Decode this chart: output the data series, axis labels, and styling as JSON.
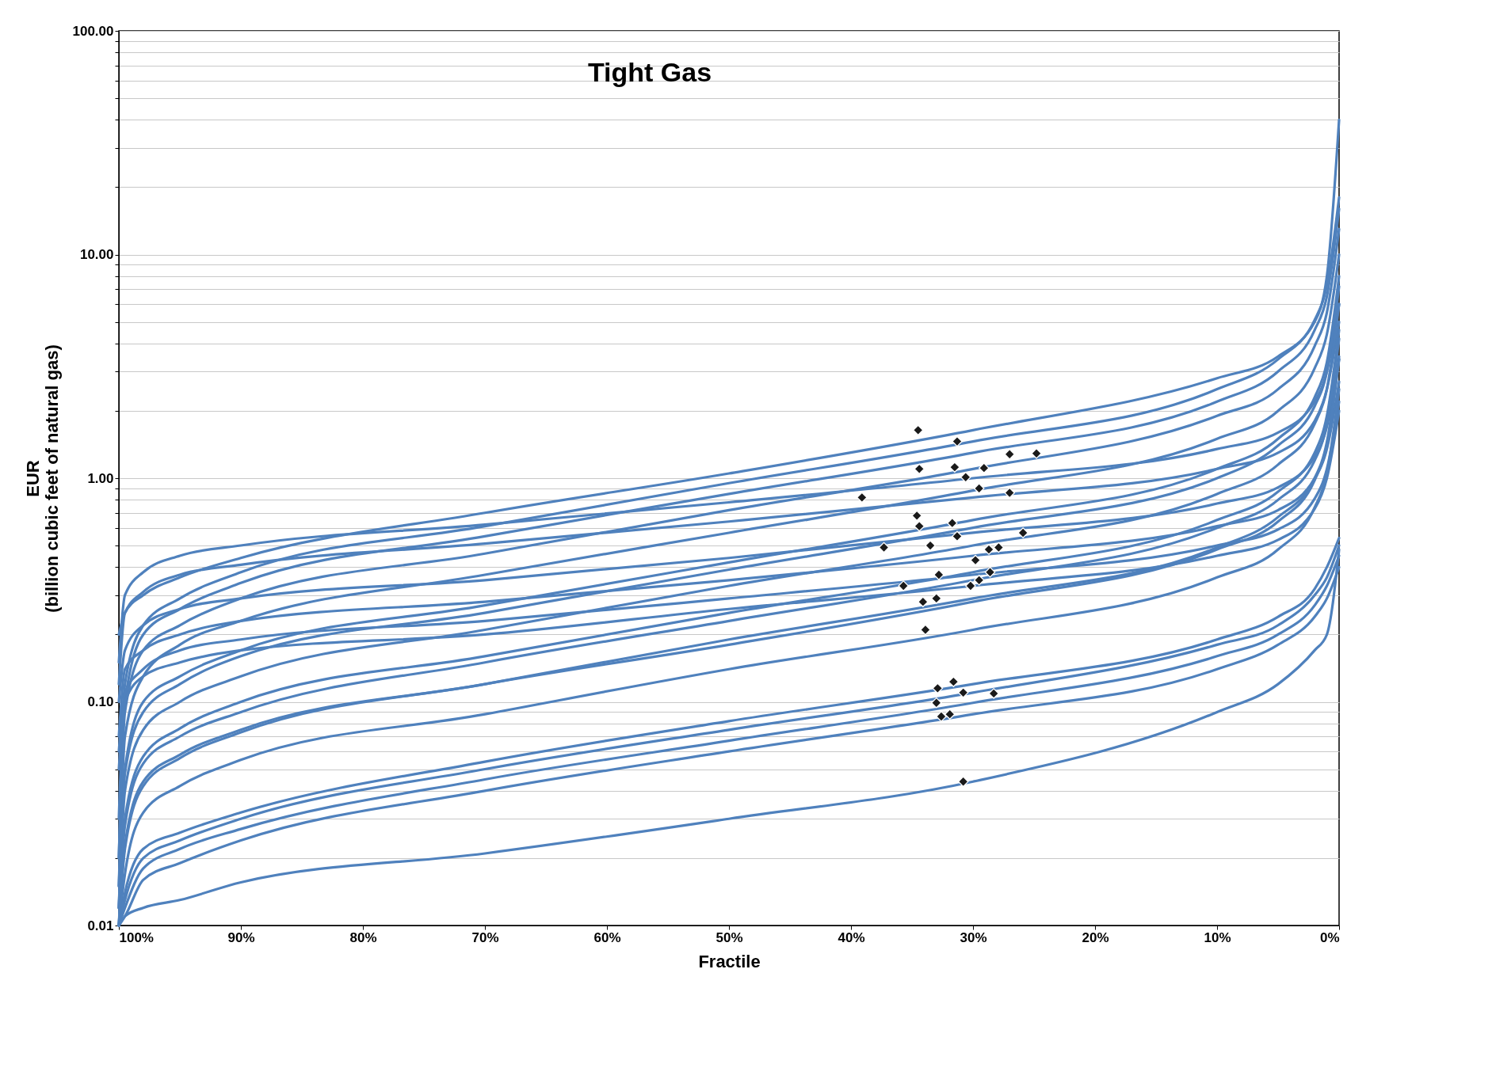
{
  "chart_data": {
    "type": "line",
    "title": "Tight Gas",
    "xlabel": "Fractile",
    "ylabel": "EUR\n(billion cubic feet of natural gas)",
    "log": "y",
    "grid": "y",
    "x": [
      100,
      99.5,
      98,
      95,
      90,
      70,
      50,
      30,
      10,
      5,
      2,
      1,
      0
    ],
    "xlim": [
      100,
      0
    ],
    "xticks": [
      {
        "value": 100,
        "label": "100%"
      },
      {
        "value": 90,
        "label": "90%"
      },
      {
        "value": 80,
        "label": "80%"
      },
      {
        "value": 70,
        "label": "70%"
      },
      {
        "value": 60,
        "label": "60%"
      },
      {
        "value": 50,
        "label": "50%"
      },
      {
        "value": 40,
        "label": "40%"
      },
      {
        "value": 30,
        "label": "30%"
      },
      {
        "value": 20,
        "label": "20%"
      },
      {
        "value": 10,
        "label": "10%"
      },
      {
        "value": 0,
        "label": "0%"
      }
    ],
    "ylim": [
      0.01,
      100
    ],
    "yticks": [
      {
        "value": 0.01,
        "label": "0.01"
      },
      {
        "value": 0.02,
        "label": null
      },
      {
        "value": 0.03,
        "label": null
      },
      {
        "value": 0.04,
        "label": null
      },
      {
        "value": 0.05,
        "label": null
      },
      {
        "value": 0.06,
        "label": null
      },
      {
        "value": 0.07,
        "label": null
      },
      {
        "value": 0.08,
        "label": null
      },
      {
        "value": 0.09,
        "label": null
      },
      {
        "value": 0.1,
        "label": "0.10"
      },
      {
        "value": 0.2,
        "label": null
      },
      {
        "value": 0.3,
        "label": null
      },
      {
        "value": 0.4,
        "label": null
      },
      {
        "value": 0.5,
        "label": null
      },
      {
        "value": 0.6,
        "label": null
      },
      {
        "value": 0.7,
        "label": null
      },
      {
        "value": 0.8,
        "label": null
      },
      {
        "value": 0.9,
        "label": null
      },
      {
        "value": 1,
        "label": "1.00"
      },
      {
        "value": 2,
        "label": null
      },
      {
        "value": 3,
        "label": null
      },
      {
        "value": 4,
        "label": null
      },
      {
        "value": 5,
        "label": null
      },
      {
        "value": 6,
        "label": null
      },
      {
        "value": 7,
        "label": null
      },
      {
        "value": 8,
        "label": null
      },
      {
        "value": 9,
        "label": null
      },
      {
        "value": 10,
        "label": "10.00"
      },
      {
        "value": 20,
        "label": null
      },
      {
        "value": 30,
        "label": null
      },
      {
        "value": 40,
        "label": null
      },
      {
        "value": 50,
        "label": null
      },
      {
        "value": 60,
        "label": null
      },
      {
        "value": 70,
        "label": null
      },
      {
        "value": 80,
        "label": null
      },
      {
        "value": 90,
        "label": null
      },
      {
        "value": 100,
        "label": "100.00"
      }
    ],
    "series": [
      {
        "color": "#4f81bd",
        "values": [
          0.2,
          0.25,
          0.3,
          0.36,
          0.44,
          0.7,
          1.05,
          1.64,
          2.8,
          3.5,
          5,
          8,
          40
        ]
      },
      {
        "color": "#4f81bd",
        "values": [
          0.03,
          0.12,
          0.22,
          0.29,
          0.38,
          0.61,
          0.95,
          1.46,
          2.5,
          3.4,
          5.1,
          7.3,
          18
        ]
      },
      {
        "color": "#4f81bd",
        "values": [
          0.02,
          0.1,
          0.2,
          0.26,
          0.34,
          0.55,
          0.85,
          1.3,
          2.2,
          3,
          4.6,
          6.5,
          16
        ]
      },
      {
        "color": "#4f81bd",
        "values": [
          0.02,
          0.09,
          0.17,
          0.22,
          0.29,
          0.46,
          0.72,
          1.1,
          1.9,
          2.5,
          3.9,
          5.5,
          13
        ]
      },
      {
        "color": "#4f81bd",
        "values": [
          0.15,
          0.3,
          0.38,
          0.45,
          0.5,
          0.62,
          0.78,
          1.0,
          1.35,
          1.6,
          2.2,
          3,
          6
        ]
      },
      {
        "color": "#4f81bd",
        "values": [
          0.015,
          0.07,
          0.13,
          0.18,
          0.23,
          0.37,
          0.57,
          0.88,
          1.5,
          2,
          3.1,
          4.4,
          10
        ]
      },
      {
        "color": "#4f81bd",
        "values": [
          0.12,
          0.25,
          0.31,
          0.37,
          0.41,
          0.51,
          0.64,
          0.82,
          1.1,
          1.3,
          1.8,
          2.5,
          5
        ]
      },
      {
        "color": "#4f81bd",
        "values": [
          0.015,
          0.05,
          0.1,
          0.13,
          0.17,
          0.27,
          0.42,
          0.65,
          1.1,
          1.5,
          2.3,
          3.3,
          8
        ]
      },
      {
        "color": "#4f81bd",
        "values": [
          0.012,
          0.048,
          0.09,
          0.12,
          0.16,
          0.25,
          0.39,
          0.6,
          1,
          1.4,
          2.1,
          3,
          7.2
        ]
      },
      {
        "color": "#4f81bd",
        "values": [
          0.1,
          0.17,
          0.22,
          0.26,
          0.29,
          0.35,
          0.44,
          0.57,
          0.77,
          0.91,
          1.25,
          1.7,
          3.4
        ]
      },
      {
        "color": "#4f81bd",
        "values": [
          0.012,
          0.04,
          0.075,
          0.1,
          0.13,
          0.21,
          0.33,
          0.5,
          0.85,
          1.15,
          1.75,
          2.5,
          6
        ]
      },
      {
        "color": "#4f81bd",
        "values": [
          0.07,
          0.14,
          0.17,
          0.2,
          0.23,
          0.28,
          0.35,
          0.45,
          0.61,
          0.72,
          1,
          1.35,
          2.7
        ]
      },
      {
        "color": "#4f81bd",
        "values": [
          0.012,
          0.03,
          0.057,
          0.076,
          0.1,
          0.16,
          0.25,
          0.38,
          0.65,
          0.87,
          1.3,
          1.9,
          4.6
        ]
      },
      {
        "color": "#4f81bd",
        "values": [
          0.06,
          0.11,
          0.14,
          0.17,
          0.19,
          0.23,
          0.29,
          0.37,
          0.5,
          0.59,
          0.81,
          1.1,
          2.2
        ]
      },
      {
        "color": "#4f81bd",
        "values": [
          0.01,
          0.028,
          0.053,
          0.07,
          0.09,
          0.15,
          0.23,
          0.35,
          0.6,
          0.8,
          1.2,
          1.75,
          4.2
        ]
      },
      {
        "color": "#4f81bd",
        "values": [
          0.05,
          0.1,
          0.13,
          0.15,
          0.17,
          0.2,
          0.26,
          0.33,
          0.45,
          0.53,
          0.73,
          1,
          2
        ]
      },
      {
        "color": "#4f81bd",
        "values": [
          0.01,
          0.023,
          0.044,
          0.058,
          0.075,
          0.12,
          0.19,
          0.29,
          0.49,
          0.67,
          1,
          1.45,
          3.5
        ]
      },
      {
        "color": "#4f81bd",
        "values": [
          0.01,
          0.022,
          0.042,
          0.056,
          0.073,
          0.12,
          0.18,
          0.28,
          0.48,
          0.64,
          0.98,
          1.4,
          3.4
        ]
      },
      {
        "color": "#4f81bd",
        "values": [
          0.01,
          0.017,
          0.032,
          0.042,
          0.055,
          0.088,
          0.14,
          0.21,
          0.36,
          0.48,
          0.74,
          1.05,
          2.5
        ]
      },
      {
        "color": "#4f81bd",
        "values": [
          0.01,
          0.014,
          0.022,
          0.026,
          0.032,
          0.054,
          0.082,
          0.12,
          0.19,
          0.24,
          0.32,
          0.4,
          0.54
        ]
      },
      {
        "color": "#4f81bd",
        "values": [
          0.01,
          0.013,
          0.02,
          0.024,
          0.03,
          0.05,
          0.075,
          0.11,
          0.18,
          0.22,
          0.3,
          0.36,
          0.5
        ]
      },
      {
        "color": "#4f81bd",
        "values": [
          0.01,
          0.012,
          0.018,
          0.022,
          0.027,
          0.045,
          0.067,
          0.099,
          0.16,
          0.2,
          0.27,
          0.33,
          0.45
        ]
      },
      {
        "color": "#4f81bd",
        "values": [
          0.01,
          0.011,
          0.016,
          0.019,
          0.024,
          0.04,
          0.06,
          0.088,
          0.14,
          0.18,
          0.24,
          0.29,
          0.4
        ]
      },
      {
        "color": "#4f81bd",
        "values": [
          0.01,
          0.011,
          0.012,
          0.013,
          0.0156,
          0.021,
          0.03,
          0.044,
          0.09,
          0.12,
          0.17,
          0.2,
          0.48
        ]
      },
      {
        "type": "scatter",
        "marker": "diamond",
        "color": "#1a1a1a",
        "x": [
          34.5,
          31.3,
          27.0,
          24.8,
          34.4,
          31.5,
          29.1,
          30.6,
          29.5,
          27.0,
          39.1,
          34.6,
          34.4,
          31.7,
          31.3,
          25.9,
          37.3,
          33.5,
          27.9,
          28.7,
          29.8,
          32.8,
          28.6,
          29.5,
          30.2,
          35.7,
          33.0,
          34.1,
          33.9,
          31.6,
          32.9,
          30.8,
          28.3,
          33.0,
          32.6,
          31.9,
          30.8
        ],
        "values": [
          1.64,
          1.46,
          1.28,
          1.29,
          1.1,
          1.12,
          1.11,
          1.01,
          0.9,
          0.86,
          0.82,
          0.68,
          0.61,
          0.63,
          0.55,
          0.57,
          0.49,
          0.5,
          0.49,
          0.48,
          0.43,
          0.37,
          0.38,
          0.35,
          0.33,
          0.33,
          0.29,
          0.28,
          0.21,
          0.123,
          0.115,
          0.11,
          0.109,
          0.099,
          0.086,
          0.088,
          0.044
        ]
      }
    ]
  }
}
